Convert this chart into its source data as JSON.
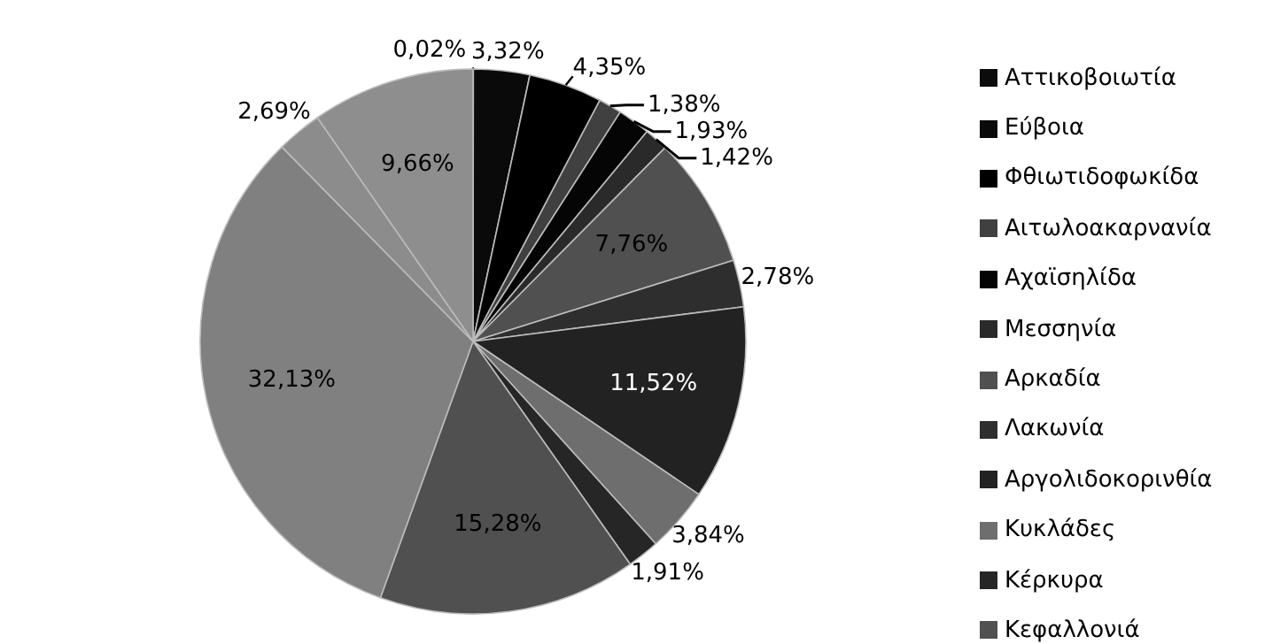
{
  "chart_data": {
    "type": "pie",
    "categories": [
      "Αττικοβοιωτία",
      "Εύβοια",
      "Φθιωτιδοφωκίδα",
      "Αιτωλοακαρνανία",
      "Αχαϊσηλίδα",
      "Μεσσηνία",
      "Αρκαδία",
      "Λακωνία",
      "Αργολιδοκορινθία",
      "Κυκλάδες",
      "Κέρκυρα",
      "Κεφαλλονιά",
      null,
      null,
      null
    ],
    "values": [
      0.02,
      3.32,
      4.35,
      1.38,
      1.93,
      1.42,
      7.76,
      2.78,
      11.52,
      3.84,
      1.91,
      15.28,
      32.13,
      2.69,
      9.66
    ],
    "colors": [
      "#0c0c0c",
      "#0a0a0a",
      "#000000",
      "#404040",
      "#050505",
      "#2a2a2a",
      "#505050",
      "#2e2e2e",
      "#222222",
      "#6e6e6e",
      "#262626",
      "#505050",
      "#808080",
      "#8c8c8c",
      "#8e8e8e"
    ],
    "value_labels": [
      "0,02%",
      "3,32%",
      "4,35%",
      "1,38%",
      "1,93%",
      "1,42%",
      "7,76%",
      "2,78%",
      "11,52%",
      "3,84%",
      "1,91%",
      "15,28%",
      "32,13%",
      "2,69%",
      "9,66%"
    ],
    "legend": "right"
  }
}
